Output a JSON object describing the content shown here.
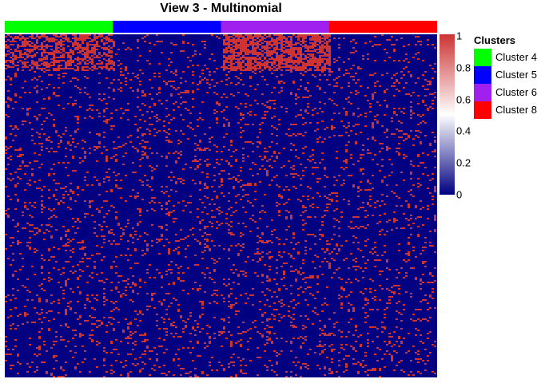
{
  "chart_data": {
    "type": "heatmap",
    "title": "View 3 - Multinomial",
    "value_range": [
      0,
      1
    ],
    "colorscale": {
      "low": "#000080",
      "mid": "#ffffff",
      "high": "#cc3333"
    },
    "colorbar_ticks": [
      "0",
      "0.2",
      "0.4",
      "0.6",
      "0.8",
      "1"
    ],
    "column_annotation": [
      {
        "cluster": "Cluster 4",
        "color": "#00ff00"
      },
      {
        "cluster": "Cluster 5",
        "color": "#0000ff"
      },
      {
        "cluster": "Cluster 6",
        "color": "#a020f0"
      },
      {
        "cluster": "Cluster 8",
        "color": "#ff0000"
      }
    ],
    "cell_summary": {
      "top_block_density": {
        "Cluster 4": 0.55,
        "Cluster 5": 0.08,
        "Cluster 6": 0.7,
        "Cluster 8": 0.06
      },
      "background_density": 0.1
    }
  },
  "legend": {
    "title": "Clusters",
    "items": [
      {
        "label": "Cluster 4",
        "color": "#00ff00"
      },
      {
        "label": "Cluster 5",
        "color": "#0000ff"
      },
      {
        "label": "Cluster 6",
        "color": "#a020f0"
      },
      {
        "label": "Cluster 8",
        "color": "#ff0000"
      }
    ]
  }
}
